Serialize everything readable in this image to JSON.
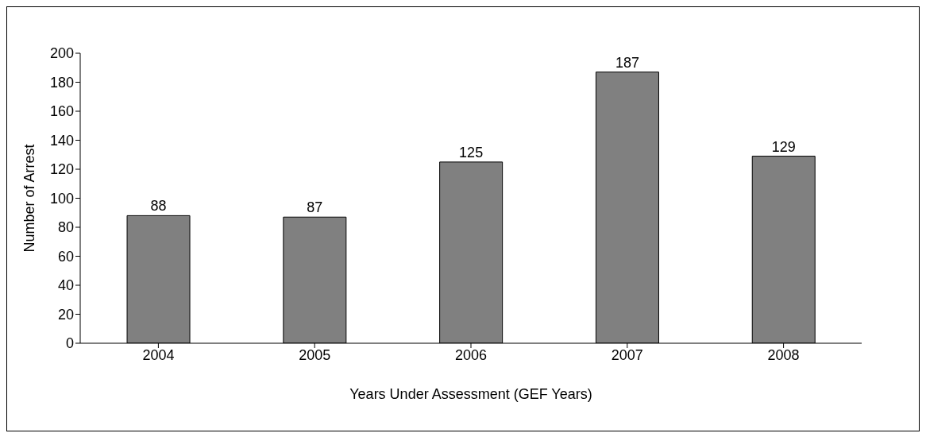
{
  "chart_data": {
    "type": "bar",
    "categories": [
      "2004",
      "2005",
      "2006",
      "2007",
      "2008"
    ],
    "values": [
      88,
      87,
      125,
      187,
      129
    ],
    "color": "#808080",
    "ylim": [
      0,
      200
    ],
    "yticks": [
      0,
      20,
      40,
      60,
      80,
      100,
      120,
      140,
      160,
      180,
      200
    ],
    "xlabel": "Years Under Assessment (GEF Years)",
    "ylabel": "Number of Arrest",
    "data_labels": true,
    "grid": false
  }
}
